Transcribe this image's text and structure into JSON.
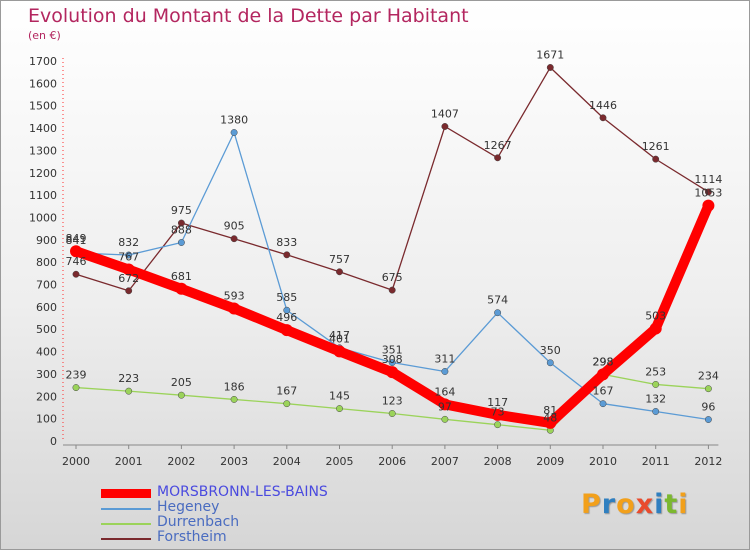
{
  "header": {
    "title": "Evolution du Montant de la Dette par Habitant",
    "subtitle": "(en €)"
  },
  "logo": {
    "text": "Proxiti",
    "colors": [
      "#f2a01b",
      "#2f7fc0",
      "#f2a01b",
      "#e94b2d",
      "#2f7fc0",
      "#7cb82f",
      "#f2a01b"
    ]
  },
  "chart_data": {
    "type": "line",
    "title": "Evolution du Montant de la Dette par Habitant",
    "subtitle": "(en €)",
    "xlabel": "",
    "ylabel": "",
    "categories": [
      "2000",
      "2001",
      "2002",
      "2003",
      "2004",
      "2005",
      "2006",
      "2007",
      "2008",
      "2009",
      "2010",
      "2011",
      "2012"
    ],
    "ylim": [
      0,
      1700
    ],
    "yticks": [
      0,
      100,
      200,
      300,
      400,
      500,
      600,
      700,
      800,
      900,
      1000,
      1100,
      1200,
      1300,
      1400,
      1500,
      1600,
      1700
    ],
    "grid": false,
    "legend_position": "bottom-left",
    "series": [
      {
        "name": "Forstheim",
        "color": "#7a2a2e",
        "values": [
          746,
          672,
          975,
          905,
          833,
          757,
          675,
          1407,
          1267,
          1671,
          1446,
          1261,
          1114
        ]
      },
      {
        "name": "Hegeney",
        "color": "#5b9bd5",
        "values": [
          841,
          832,
          888,
          1380,
          585,
          417,
          351,
          311,
          574,
          350,
          167,
          132,
          96
        ]
      },
      {
        "name": "Durrenbach",
        "color": "#9bd35a",
        "values": [
          239,
          223,
          205,
          186,
          167,
          145,
          123,
          97,
          73,
          48,
          298,
          253,
          234
        ]
      },
      {
        "name": "MORSBRONN-LES-BAINS",
        "color": "#ff0000",
        "values": [
          849,
          767,
          681,
          593,
          496,
          401,
          308,
          164,
          117,
          81,
          298,
          503,
          1053
        ]
      }
    ]
  }
}
